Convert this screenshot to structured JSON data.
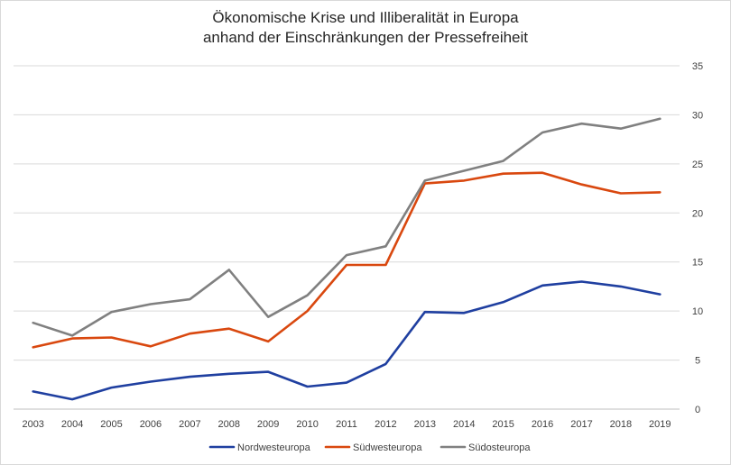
{
  "title": [
    "Ökonomische Krise und Illiberalität in Europa",
    "anhand der Einschränkungen der Pressefreiheit"
  ],
  "chart_data": {
    "type": "line",
    "title": "Ökonomische Krise und Illiberalität in Europa anhand der Einschränkungen der Pressefreiheit",
    "x": [
      "2003",
      "2004",
      "2005",
      "2006",
      "2007",
      "2008",
      "2009",
      "2010",
      "2011",
      "2012",
      "2013",
      "2014",
      "2015",
      "2016",
      "2017",
      "2018",
      "2019"
    ],
    "ylim": [
      0,
      35
    ],
    "yticks": [
      0,
      5,
      10,
      15,
      20,
      25,
      30,
      35
    ],
    "y_axis_side": "right",
    "grid": true,
    "legend_position": "bottom",
    "series": [
      {
        "name": "Nordwesteuropa",
        "color": "#1f3fa0",
        "values": [
          1.8,
          1.0,
          2.2,
          2.8,
          3.3,
          3.6,
          3.8,
          2.3,
          2.7,
          4.6,
          9.9,
          9.8,
          10.9,
          12.6,
          13.0,
          12.5,
          11.7
        ]
      },
      {
        "name": "Südwesteuropa",
        "color": "#d9480f",
        "values": [
          6.3,
          7.2,
          7.3,
          6.4,
          7.7,
          8.2,
          6.9,
          10.0,
          14.7,
          14.7,
          23.0,
          23.3,
          24.0,
          24.1,
          22.9,
          22.0,
          22.1
        ]
      },
      {
        "name": "Südosteuropa",
        "color": "#808080",
        "values": [
          8.8,
          7.5,
          9.9,
          10.7,
          11.2,
          14.2,
          9.4,
          11.6,
          15.7,
          16.6,
          23.3,
          24.3,
          25.3,
          28.2,
          29.1,
          28.6,
          29.6
        ]
      }
    ]
  }
}
